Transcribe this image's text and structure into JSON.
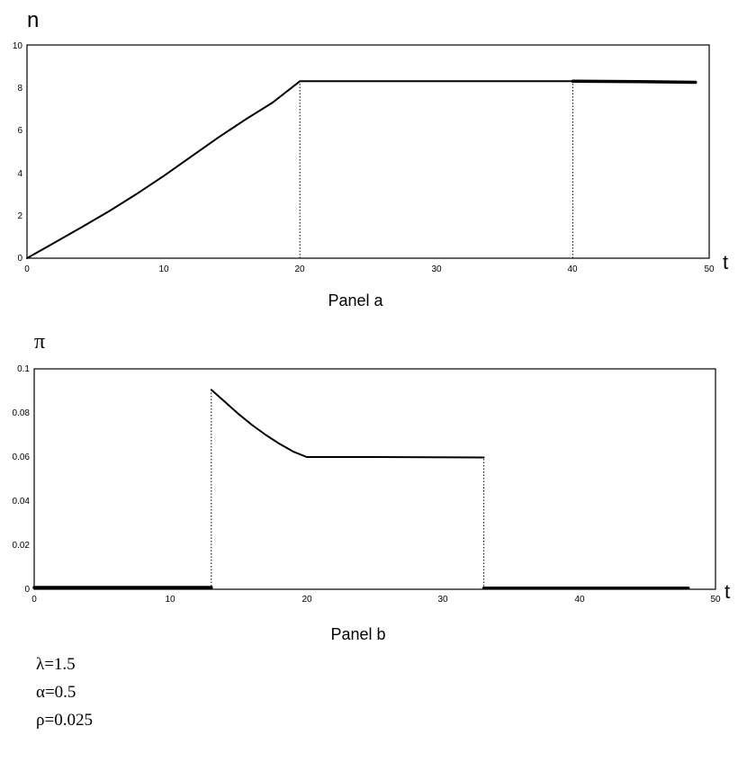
{
  "chart_data": [
    {
      "type": "line",
      "panel_label": "Panel a",
      "ylabel": "n",
      "xlabel": "t",
      "xlim": [
        0,
        50
      ],
      "ylim": [
        0,
        10
      ],
      "xticks": [
        "0",
        "10",
        "20",
        "30",
        "40",
        "50"
      ],
      "yticks": [
        "0",
        "2",
        "4",
        "6",
        "8",
        "10"
      ],
      "grid": false,
      "series": [
        {
          "style": "solid",
          "x": [
            0,
            2,
            4,
            6,
            8,
            10,
            12,
            14,
            16,
            18,
            20,
            25,
            30,
            35,
            40
          ],
          "y": [
            0,
            0.72,
            1.45,
            2.2,
            3.0,
            3.85,
            4.75,
            5.65,
            6.5,
            7.3,
            8.3,
            8.3,
            8.3,
            8.3,
            8.3
          ]
        },
        {
          "style": "thick",
          "x": [
            40,
            45,
            49
          ],
          "y": [
            8.3,
            8.28,
            8.25
          ]
        }
      ],
      "vlines": [
        {
          "x": 20,
          "y": 8.3,
          "style": "dotted"
        },
        {
          "x": 40,
          "y": 8.3,
          "style": "dotted"
        }
      ]
    },
    {
      "type": "line",
      "panel_label": "Panel b",
      "ylabel": "π",
      "xlabel": "t",
      "xlim": [
        0,
        50
      ],
      "ylim": [
        0,
        0.1
      ],
      "xticks": [
        "0",
        "10",
        "20",
        "30",
        "40",
        "50"
      ],
      "yticks": [
        "0",
        "0.02",
        "0.04",
        "0.06",
        "0.08",
        "0.1"
      ],
      "grid": false,
      "series": [
        {
          "style": "thick",
          "x": [
            0,
            13
          ],
          "y": [
            0.0008,
            0.0008
          ]
        },
        {
          "style": "solid",
          "x": [
            13,
            14,
            15,
            16,
            17,
            18,
            19,
            20,
            25,
            33
          ],
          "y": [
            0.0905,
            0.085,
            0.0795,
            0.0745,
            0.07,
            0.066,
            0.0625,
            0.06,
            0.06,
            0.0598
          ]
        },
        {
          "style": "thick",
          "x": [
            33,
            48
          ],
          "y": [
            0.0005,
            0.0005
          ]
        }
      ],
      "vlines": [
        {
          "x": 13,
          "y": 0.0905,
          "style": "dotted"
        },
        {
          "x": 33,
          "y": 0.0598,
          "style": "dotted"
        }
      ]
    }
  ],
  "params": [
    {
      "text": "λ=1.5"
    },
    {
      "text": "α=0.5"
    },
    {
      "text": "ρ=0.025"
    }
  ]
}
